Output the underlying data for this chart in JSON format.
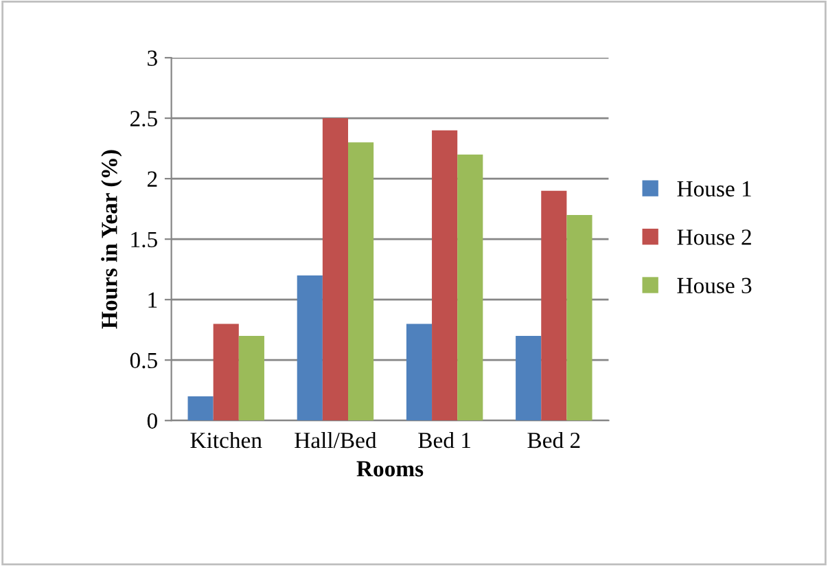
{
  "chart_data": {
    "type": "bar",
    "xlabel": "Rooms",
    "ylabel": "Hours in Year (%)",
    "categories": [
      "Kitchen",
      "Hall/Bed",
      "Bed 1",
      "Bed 2"
    ],
    "series": [
      {
        "name": "House 1",
        "color": "#4f81bd",
        "values": [
          0.2,
          1.2,
          0.8,
          0.7
        ]
      },
      {
        "name": "House 2",
        "color": "#c0504d",
        "values": [
          0.8,
          2.5,
          2.4,
          1.9
        ]
      },
      {
        "name": "House 3",
        "color": "#9bbb59",
        "values": [
          0.7,
          2.3,
          2.2,
          1.7
        ]
      }
    ],
    "ylim": [
      0,
      3
    ],
    "yticks": [
      0,
      0.5,
      1,
      1.5,
      2,
      2.5,
      3
    ],
    "grid": "y",
    "legend": "right"
  }
}
